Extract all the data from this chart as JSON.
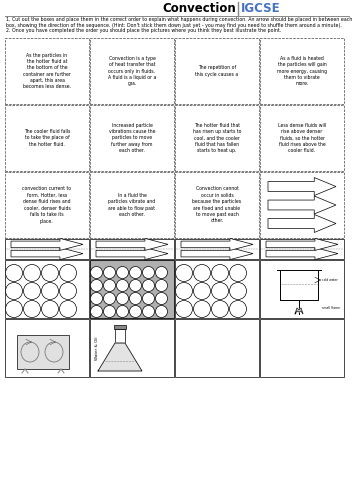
{
  "title": "Convection",
  "igcse_color": "#4472C4",
  "instruction1": "1. Cut out the boxes and place them in the correct order to explain what happens during convection. An arrow should be placed in between each box, showing the direction of the sequence. (Hint: Don't stick them down just yet - you may find you need to shuffle them around a minute).",
  "instruction2": "2. Once you have completed the order you should place the pictures where you think they best illustrate the point.",
  "row1": [
    "As the particles in\nthe hotter fluid at\nthe bottom of the\ncontainer are further\napart, this area\nbecomes less dense.",
    "Convection is a type\nof heat transfer that\noccurs only in fluids.\nA fluid is a liquid or a\ngas.",
    "The repetition of\nthis cycle causes a",
    "As a fluid is heated\nthe particles will gain\nmore energy, causing\nthem to vibrate\nmore."
  ],
  "row2": [
    "The cooler fluid falls\nto take the place of\nthe hotter fluid.",
    "Increased particle\nvibrations cause the\nparticles to move\nfurther away from\neach other.",
    "The hotter fluid that\nhas risen up starts to\ncool, and the cooler\nfluid that has fallen\nstarts to heat up.",
    "Less dense fluids will\nrise above denser\nfluids, so the hotter\nfluid rises above the\ncooler fluid."
  ],
  "row3": [
    "convection current to\nform. Hotter, less\ndense fluid rises and\ncooler, denser fluids\nfalls to take its\nplace.",
    "In a fluid the\nparticles vibrate and\nare able to flow past\neach other.",
    "Convection cannot\noccur in solids\nbecause the particles\nare fixed and unable\nto move past each\nother.",
    "arrows"
  ],
  "bg_color": "#ffffff"
}
